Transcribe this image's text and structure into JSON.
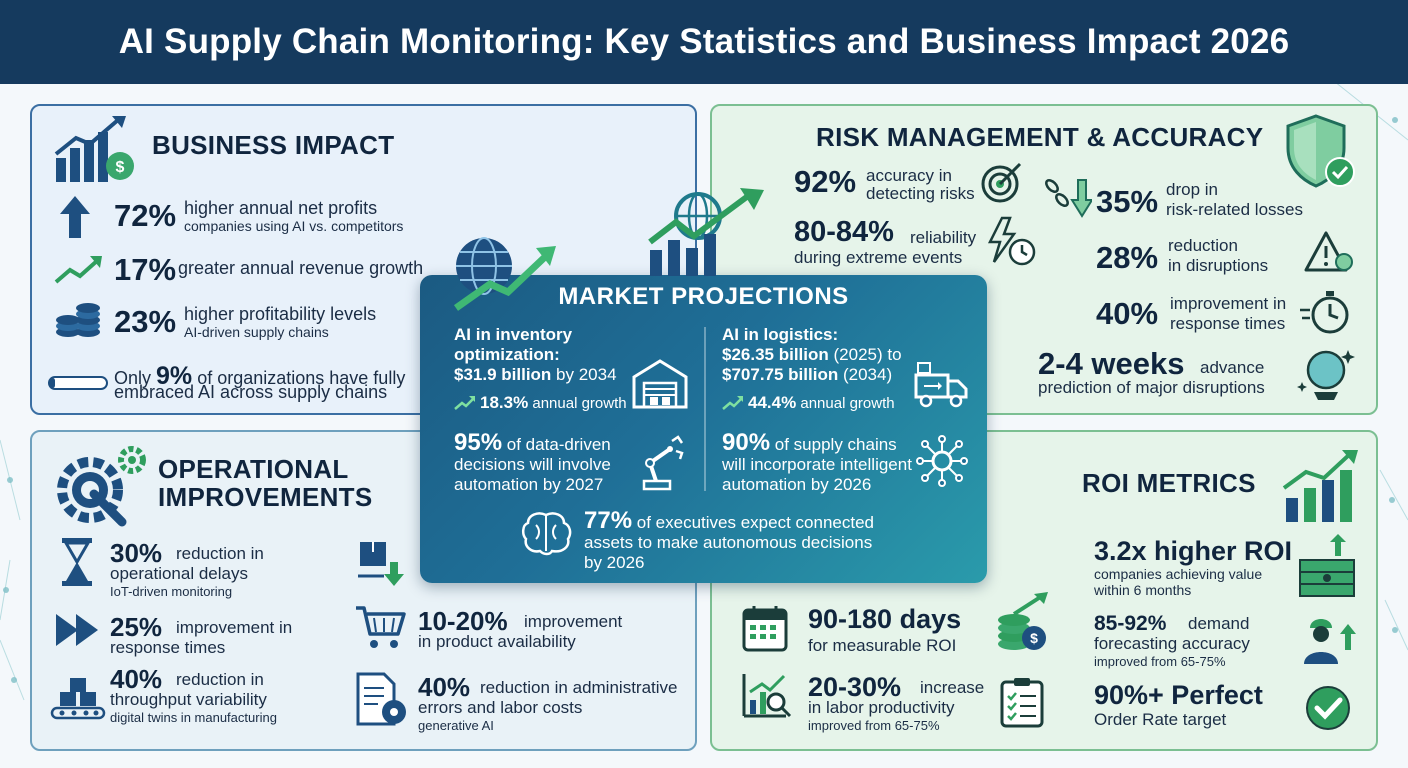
{
  "header": {
    "title": "AI Supply Chain Monitoring: Key Statistics and Business Impact 2026"
  },
  "colors": {
    "navy": "#153a5e",
    "green": "#2f9e5e",
    "teal": "#1f7a8c",
    "blue": "#1e5a8a"
  },
  "business": {
    "title": "BUSINESS IMPACT",
    "s1": {
      "value": "72%",
      "line1": "higher annual net profits",
      "line2": "companies using AI vs. competitors"
    },
    "s2": {
      "value": "17%",
      "line1": "greater annual revenue growth"
    },
    "s3": {
      "value": "23%",
      "line1": "higher profitability levels",
      "line2": "AI-driven supply chains"
    },
    "s4": {
      "pre": "Only",
      "value": "9%",
      "post": "of organizations have fully",
      "line2": "embraced AI across supply chains",
      "fill_fraction": 0.09
    }
  },
  "risk": {
    "title": "RISK MANAGEMENT & ACCURACY",
    "s1": {
      "value": "92%",
      "line1": "accuracy in",
      "line2": "detecting risks"
    },
    "s2": {
      "value": "80-84%",
      "line1": "reliability",
      "line2": "during extreme events"
    },
    "s3": {
      "value": "35%",
      "line1": "drop in",
      "line2": "risk-related losses"
    },
    "s4": {
      "value": "28%",
      "line1": "reduction",
      "line2": "in disruptions"
    },
    "s5": {
      "value": "40%",
      "line1": "improvement in",
      "line2": "response times"
    },
    "s6": {
      "value": "2-4 weeks",
      "line1": "advance",
      "line2": "prediction of major disruptions"
    }
  },
  "market": {
    "title": "MARKET PROJECTIONS",
    "inv": {
      "line1": "AI in inventory",
      "line2": "optimization:",
      "line3": "$31.9 billion",
      "line3b": "by 2034",
      "growth_value": "18.3%",
      "growth_text": "annual growth"
    },
    "log": {
      "line1": "AI in logistics:",
      "line2": "$26.35 billion",
      "line2b": "(2025) to",
      "line3": "$707.75 billion",
      "line3b": "(2034)",
      "growth_value": "44.4%",
      "growth_text": "annual growth"
    },
    "s1": {
      "value": "95%",
      "line1": "of data-driven",
      "line2": "decisions will involve",
      "line3": "automation by 2027"
    },
    "s2": {
      "value": "90%",
      "line1": "of supply chains",
      "line2": "will incorporate intelligent",
      "line3": "automation by 2026"
    },
    "s3": {
      "value": "77%",
      "line1": "of executives expect connected",
      "line2": "assets to make autonomous decisions",
      "line3": "by 2026"
    }
  },
  "ops": {
    "title1": "OPERATIONAL",
    "title2": "IMPROVEMENTS",
    "s1": {
      "value": "30%",
      "line1": "reduction in",
      "line2": "operational delays",
      "line3": "IoT-driven monitoring"
    },
    "s2": {
      "value": "25%",
      "line1": "improvement in",
      "line2": "response times"
    },
    "s3": {
      "value": "40%",
      "line1": "reduction in",
      "line2": "throughput variability",
      "line3": "digital twins in manufacturing"
    },
    "s4": {
      "value": "10-20%",
      "line1": "improvement",
      "line2": "in product availability"
    },
    "s5": {
      "value": "40%",
      "line1": "reduction in administrative",
      "line2": "errors and labor costs",
      "line3": "generative AI"
    }
  },
  "roi": {
    "title": "ROI METRICS",
    "s1": {
      "value": "3.2x higher ROI",
      "line1": "companies achieving value",
      "line2": "within 6 months"
    },
    "s2": {
      "value": "90-180 days",
      "line1": "for measurable ROI"
    },
    "s3": {
      "value": "85-92%",
      "line1": "demand",
      "line2": "forecasting accuracy",
      "line3": "improved from 65-75%"
    },
    "s4": {
      "value": "20-30%",
      "line1": "increase",
      "line2": "in labor productivity",
      "line3": "improved from 65-75%"
    },
    "s5": {
      "value": "90%+ Perfect",
      "line1": "Order Rate target"
    }
  }
}
